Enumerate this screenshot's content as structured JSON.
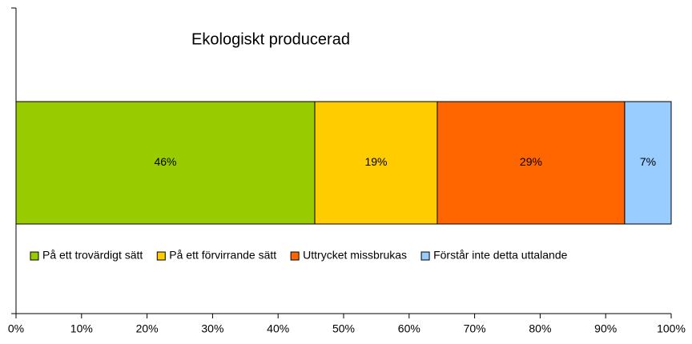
{
  "chart_data": {
    "type": "bar",
    "orientation": "horizontal",
    "stacked": true,
    "title": "Ekologiskt producerad",
    "series": [
      {
        "name": "På ett trovärdigt sätt",
        "color": "#99cc00",
        "values": [
          45.6
        ],
        "value_labels": [
          "46%"
        ]
      },
      {
        "name": "På ett förvirrande sätt",
        "color": "#ffcc00",
        "values": [
          18.7
        ],
        "value_labels": [
          "19%"
        ]
      },
      {
        "name": "Uttrycket missbrukas",
        "color": "#ff6600",
        "values": [
          28.6
        ],
        "value_labels": [
          "29%"
        ]
      },
      {
        "name": "Förstår inte detta uttalande",
        "color": "#99ccff",
        "values": [
          7.1
        ],
        "value_labels": [
          "7%"
        ]
      }
    ],
    "xlim": [
      0,
      100
    ],
    "xticks": [
      {
        "value": 0,
        "label": "0%"
      },
      {
        "value": 10,
        "label": "10%"
      },
      {
        "value": 20,
        "label": "20%"
      },
      {
        "value": 30,
        "label": "30%"
      },
      {
        "value": 40,
        "label": "40%"
      },
      {
        "value": 50,
        "label": "50%"
      },
      {
        "value": 60,
        "label": "60%"
      },
      {
        "value": 70,
        "label": "70%"
      },
      {
        "value": 80,
        "label": "80%"
      },
      {
        "value": 90,
        "label": "90%"
      },
      {
        "value": 100,
        "label": "100%"
      }
    ],
    "legend": "bottom"
  }
}
